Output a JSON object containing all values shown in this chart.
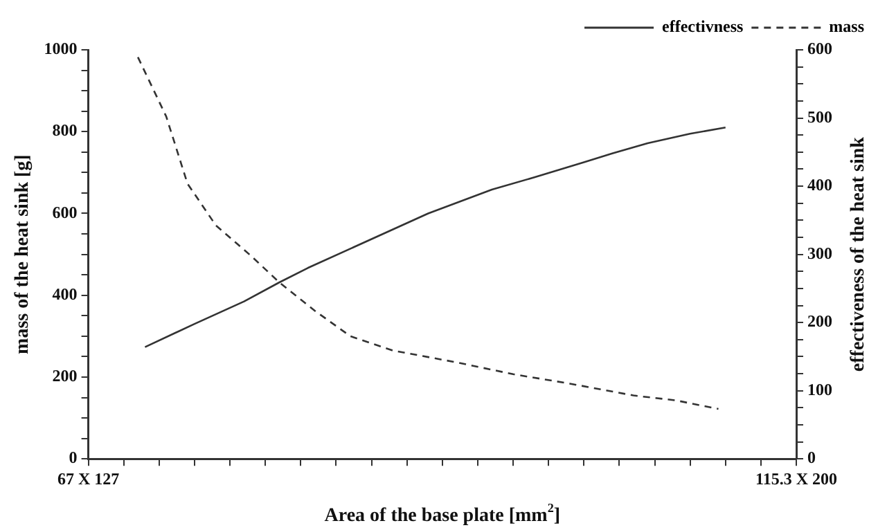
{
  "chart_data": {
    "type": "line",
    "xlabel": "Area of the base plate [mm$^{2}$]",
    "ylabel": "mass of the heat sink [g]",
    "y2label": "effectiveness of the heat sink",
    "categories": [
      "67 X 127",
      null,
      null,
      null,
      null,
      null,
      null,
      null,
      null,
      null,
      null,
      null,
      null,
      null,
      null,
      null,
      null,
      null,
      null,
      null,
      null,
      null,
      null,
      null,
      null,
      null,
      null,
      null,
      null,
      null,
      null,
      null,
      null,
      null,
      null,
      null,
      null,
      null,
      null,
      null,
      null,
      null,
      null,
      null,
      null,
      null,
      null,
      null,
      null,
      null,
      null,
      null,
      null,
      null,
      null,
      null,
      null,
      null,
      null,
      null,
      null,
      null,
      null,
      null,
      null,
      null,
      null,
      null,
      null,
      null,
      null,
      null,
      null,
      null,
      null,
      null,
      null,
      null,
      null,
      null,
      null,
      null,
      null,
      null,
      null,
      null,
      null,
      null,
      null,
      null,
      null,
      null,
      null,
      null,
      null,
      null,
      null,
      null,
      null,
      null,
      "115.3 X 200"
    ],
    "ylim": [
      0,
      1000
    ],
    "yticks": [
      0,
      {
        "value": 50,
        "label": null
      },
      {
        "value": 100,
        "label": null
      },
      {
        "value": 150,
        "label": null
      },
      200,
      {
        "value": 250,
        "label": null
      },
      {
        "value": 300,
        "label": null
      },
      {
        "value": 350,
        "label": null
      },
      400,
      {
        "value": 450,
        "label": null
      },
      {
        "value": 500,
        "label": null
      },
      {
        "value": 550,
        "label": null
      },
      600,
      {
        "value": 650,
        "label": null
      },
      {
        "value": 700,
        "label": null
      },
      {
        "value": 750,
        "label": null
      },
      800,
      {
        "value": 850,
        "label": null
      },
      {
        "value": 900,
        "label": null
      },
      {
        "value": 950,
        "label": null
      },
      1000
    ],
    "y2lim": [
      0,
      600
    ],
    "y2ticks": [
      0,
      {
        "value": 25,
        "label": null
      },
      {
        "value": 50,
        "label": null
      },
      {
        "value": 75,
        "label": null
      },
      100,
      {
        "value": 125,
        "label": null
      },
      {
        "value": 150,
        "label": null
      },
      {
        "value": 175,
        "label": null
      },
      200,
      {
        "value": 225,
        "label": null
      },
      {
        "value": 250,
        "label": null
      },
      {
        "value": 275,
        "label": null
      },
      300,
      {
        "value": 325,
        "label": null
      },
      {
        "value": 350,
        "label": null
      },
      {
        "value": 375,
        "label": null
      },
      400,
      {
        "value": 425,
        "label": null
      },
      {
        "value": 450,
        "label": null
      },
      {
        "value": 475,
        "label": null
      },
      500,
      {
        "value": 525,
        "label": null
      },
      {
        "value": 550,
        "label": null
      },
      {
        "value": 575,
        "label": null
      },
      600
    ],
    "grid": false,
    "legend": "top right",
    "marker": "none",
    "series": [
      {
        "name": "effectivness",
        "color": "#333333",
        "axis": "y2",
        "line_style": "solid",
        "values": [
          null,
          null,
          null,
          null,
          null,
          null,
          null,
          null,
          164,
          null,
          null,
          null,
          null,
          null,
          null,
          198,
          null,
          null,
          null,
          null,
          null,
          null,
          231,
          null,
          null,
          null,
          null,
          259,
          null,
          null,
          null,
          280,
          null,
          null,
          null,
          null,
          null,
          null,
          null,
          null,
          null,
          null,
          null,
          null,
          null,
          null,
          null,
          null,
          360,
          null,
          null,
          null,
          null,
          null,
          null,
          null,
          null,
          395,
          null,
          null,
          null,
          null,
          null,
          413,
          null,
          null,
          null,
          null,
          null,
          null,
          435,
          null,
          null,
          null,
          448,
          null,
          null,
          null,
          null,
          463,
          null,
          null,
          null,
          null,
          null,
          477,
          null,
          null,
          null,
          null,
          486,
          null,
          null,
          null,
          null,
          null,
          null,
          null,
          null,
          null,
          null
        ]
      },
      {
        "name": "mass",
        "color": "#333333",
        "line_style": "dashed",
        "values": [
          null,
          null,
          null,
          null,
          null,
          null,
          null,
          982,
          null,
          null,
          null,
          837,
          null,
          null,
          673,
          null,
          null,
          null,
          571,
          null,
          null,
          null,
          null,
          496,
          null,
          null,
          null,
          431,
          null,
          null,
          null,
          null,
          362,
          null,
          null,
          null,
          null,
          300,
          null,
          null,
          null,
          null,
          null,
          265,
          null,
          null,
          null,
          null,
          null,
          null,
          null,
          null,
          236,
          null,
          null,
          null,
          null,
          null,
          null,
          null,
          207,
          null,
          null,
          null,
          null,
          null,
          null,
          null,
          184,
          null,
          null,
          null,
          null,
          null,
          null,
          null,
          null,
          155,
          null,
          null,
          null,
          null,
          null,
          143,
          null,
          null,
          null,
          null,
          null,
          122,
          null,
          null,
          null,
          null,
          null,
          null,
          null,
          null,
          null,
          null,
          null
        ]
      }
    ]
  }
}
